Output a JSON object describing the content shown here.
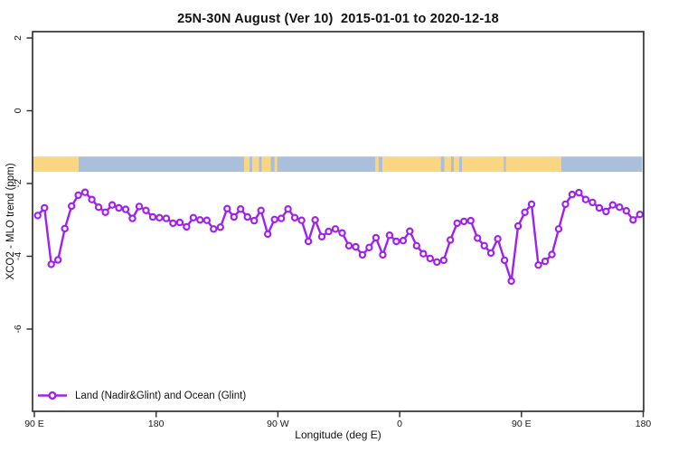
{
  "chart_data": {
    "type": "line",
    "title": "25N-30N August (Ver 10)  2015-01-01 to 2020-12-18",
    "xlabel": "Longitude (deg E)",
    "ylabel": "XCO2 - MLO trend (ppm)",
    "grid": false,
    "legend_position": "bottom-left",
    "x_axis": {
      "note": "longitude wraps eastward: 90E through dateline, 90W, 0, 90E to 180",
      "range_deg": [
        88.7,
        539.3
      ],
      "ticks": [
        {
          "lon": 90,
          "label": "90 E"
        },
        {
          "lon": 180,
          "label": "180"
        },
        {
          "lon": 270,
          "label": "90 W"
        },
        {
          "lon": 360,
          "label": "0"
        },
        {
          "lon": 450,
          "label": "90 E"
        },
        {
          "lon": 540,
          "label": "180"
        }
      ]
    },
    "y_axis": {
      "range": [
        -8.3,
        2.2
      ],
      "ticks": [
        {
          "v": 2,
          "label": "2"
        },
        {
          "v": 0,
          "label": "0"
        },
        {
          "v": -2,
          "label": "-2"
        },
        {
          "v": -4,
          "label": "-4"
        },
        {
          "v": -6,
          "label": "-6"
        }
      ]
    },
    "series": [
      {
        "name": "Land (Nadir&Glint) and Ocean (Glint)",
        "color": "#A020F0",
        "marker": "open-circle",
        "x_start": 92.5,
        "x_step": 5,
        "values": [
          -2.88,
          -2.67,
          -4.22,
          -4.1,
          -3.24,
          -2.62,
          -2.32,
          -2.24,
          -2.44,
          -2.65,
          -2.79,
          -2.59,
          -2.67,
          -2.71,
          -2.96,
          -2.63,
          -2.74,
          -2.92,
          -2.94,
          -2.96,
          -3.09,
          -3.07,
          -3.19,
          -2.94,
          -3.0,
          -3.01,
          -3.25,
          -3.2,
          -2.69,
          -2.92,
          -2.7,
          -2.92,
          -3.02,
          -2.74,
          -3.39,
          -2.99,
          -2.96,
          -2.7,
          -2.94,
          -3.01,
          -3.59,
          -3.0,
          -3.46,
          -3.32,
          -3.25,
          -3.36,
          -3.71,
          -3.74,
          -3.96,
          -3.76,
          -3.49,
          -3.96,
          -3.42,
          -3.59,
          -3.57,
          -3.31,
          -3.71,
          -3.93,
          -4.06,
          -4.16,
          -4.11,
          -3.55,
          -3.09,
          -3.04,
          -3.02,
          -3.5,
          -3.71,
          -3.91,
          -3.52,
          -4.11,
          -4.68,
          -3.17,
          -2.79,
          -2.57,
          -4.24,
          -4.14,
          -3.95,
          -3.25,
          -2.57,
          -2.3,
          -2.25,
          -2.44,
          -2.52,
          -2.67,
          -2.77,
          -2.59,
          -2.65,
          -2.75,
          -3.0,
          -2.85
        ]
      }
    ],
    "surface_band": {
      "description": "land/ocean surface-type strip",
      "y_top": -1.26,
      "y_bottom": -1.68,
      "land_color": "#FAD682",
      "ocean_color": "#A9BFDC",
      "segments": [
        {
          "from": 88.7,
          "to": 122.7,
          "surface": "land"
        },
        {
          "from": 122.7,
          "to": 245.0,
          "surface": "ocean"
        },
        {
          "from": 245.0,
          "to": 264.7,
          "surface": "land"
        },
        {
          "from": 264.7,
          "to": 347.3,
          "surface": "ocean"
        },
        {
          "from": 347.3,
          "to": 479.3,
          "surface": "land"
        },
        {
          "from": 479.3,
          "to": 539.3,
          "surface": "ocean"
        }
      ],
      "specks": [
        {
          "from": 249.0,
          "to": 251.0,
          "surface": "ocean"
        },
        {
          "from": 256.0,
          "to": 258.0,
          "surface": "ocean"
        },
        {
          "from": 267.5,
          "to": 269.5,
          "surface": "land"
        },
        {
          "from": 342.0,
          "to": 344.5,
          "surface": "land"
        },
        {
          "from": 390.5,
          "to": 393.0,
          "surface": "ocean"
        },
        {
          "from": 398.0,
          "to": 400.0,
          "surface": "ocean"
        },
        {
          "from": 404.0,
          "to": 406.0,
          "surface": "ocean"
        },
        {
          "from": 437.0,
          "to": 438.5,
          "surface": "ocean"
        }
      ]
    },
    "frame_color": "#333333"
  },
  "legend": {
    "items": [
      {
        "label": "Land (Nadir&Glint) and Ocean (Glint)",
        "color": "#A020F0"
      }
    ]
  }
}
